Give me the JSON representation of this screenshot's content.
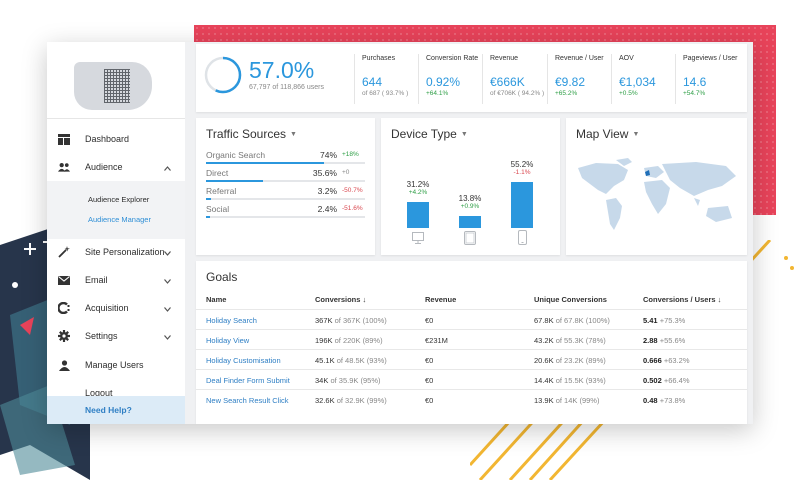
{
  "colors": {
    "accent": "#2b97dd",
    "positive": "#2e9e46",
    "negative": "#d9474f",
    "pink": "#e8435a",
    "navy": "#27354b",
    "gold": "#f2b632"
  },
  "sidebar": {
    "logo": "logo",
    "items": [
      {
        "label": "Dashboard",
        "icon": "dashboard-icon",
        "expanded": null
      },
      {
        "label": "Audience",
        "icon": "users-icon",
        "expanded": true
      },
      {
        "label": "Site Personalization",
        "icon": "magic-wand-icon",
        "expanded": false
      },
      {
        "label": "Email",
        "icon": "envelope-icon",
        "expanded": false
      },
      {
        "label": "Acquisition",
        "icon": "acquisition-icon",
        "expanded": false
      },
      {
        "label": "Settings",
        "icon": "gear-icon",
        "expanded": false
      },
      {
        "label": "Manage Users",
        "icon": "user-icon",
        "expanded": null
      },
      {
        "label": "Logout",
        "icon": "logout-icon",
        "expanded": null
      }
    ],
    "sub_items": [
      {
        "label": "Audience Explorer",
        "active": false
      },
      {
        "label": "Audience Manager",
        "active": true
      }
    ],
    "help": "Need Help?"
  },
  "kpi": {
    "main_value": "57.0%",
    "main_fraction": 0.57,
    "main_sub": "67,797 of 118,866 users",
    "metrics": [
      {
        "title": "Purchases",
        "value": "644",
        "sub": "of 687 ( 93.7% )",
        "change": ""
      },
      {
        "title": "Conversion Rate",
        "value": "0.92%",
        "sub": "",
        "change": "+64.1%"
      },
      {
        "title": "Revenue",
        "value": "€666K",
        "sub": "of €706K ( 94.2% )",
        "change": ""
      },
      {
        "title": "Revenue / User",
        "value": "€9.82",
        "sub": "",
        "change": "+65.2%"
      },
      {
        "title": "AOV",
        "value": "€1,034",
        "sub": "",
        "change": "+0.5%"
      },
      {
        "title": "Pageviews / User",
        "value": "14.6",
        "sub": "",
        "change": "+54.7%"
      }
    ]
  },
  "traffic": {
    "title": "Traffic Sources",
    "rows": [
      {
        "name": "Organic Search",
        "pct": "74%",
        "share": 0.74,
        "change": "+18%",
        "trend": "pos"
      },
      {
        "name": "Direct",
        "pct": "35.6%",
        "share": 0.356,
        "change": "+0",
        "trend": "neu"
      },
      {
        "name": "Referral",
        "pct": "3.2%",
        "share": 0.032,
        "change": "-50.7%",
        "trend": "neg"
      },
      {
        "name": "Social",
        "pct": "2.4%",
        "share": 0.024,
        "change": "-51.6%",
        "trend": "neg"
      }
    ]
  },
  "device": {
    "title": "Device Type",
    "items": [
      {
        "device": "desktop",
        "icon": "desktop-icon",
        "pct": "31.2%",
        "share": 0.312,
        "change": "+4.2%",
        "trend": "pos"
      },
      {
        "device": "tablet",
        "icon": "tablet-icon",
        "pct": "13.8%",
        "share": 0.138,
        "change": "+0.9%",
        "trend": "pos"
      },
      {
        "device": "mobile",
        "icon": "mobile-icon",
        "pct": "55.2%",
        "share": 0.552,
        "change": "-1.1%",
        "trend": "neg"
      }
    ]
  },
  "map": {
    "title": "Map View"
  },
  "goals": {
    "title": "Goals",
    "headers": [
      "Name",
      "Conversions ↓",
      "Revenue",
      "Unique Conversions",
      "Conversions / Users ↓"
    ],
    "rows": [
      {
        "name": "Holiday Search",
        "conv": "367K",
        "conv_of": "of 367K (100%)",
        "revenue": "€0",
        "uconv": "67.8K",
        "uconv_of": "of 67.8K (100%)",
        "cpu": "5.41",
        "cpu_chg": "+75.3%"
      },
      {
        "name": "Holiday View",
        "conv": "196K",
        "conv_of": "of 220K (89%)",
        "revenue": "€231M",
        "uconv": "43.2K",
        "uconv_of": "of 55.3K (78%)",
        "cpu": "2.88",
        "cpu_chg": "+55.6%"
      },
      {
        "name": "Holiday Customisation",
        "conv": "45.1K",
        "conv_of": "of 48.5K (93%)",
        "revenue": "€0",
        "uconv": "20.6K",
        "uconv_of": "of 23.2K (89%)",
        "cpu": "0.666",
        "cpu_chg": "+63.2%"
      },
      {
        "name": "Deal Finder Form Submit",
        "conv": "34K",
        "conv_of": "of 35.9K (95%)",
        "revenue": "€0",
        "uconv": "14.4K",
        "uconv_of": "of 15.5K (93%)",
        "cpu": "0.502",
        "cpu_chg": "+66.4%"
      },
      {
        "name": "New Search Result Click",
        "conv": "32.6K",
        "conv_of": "of 32.9K (99%)",
        "revenue": "€0",
        "uconv": "13.9K",
        "uconv_of": "of 14K (99%)",
        "cpu": "0.48",
        "cpu_chg": "+73.8%"
      }
    ]
  }
}
